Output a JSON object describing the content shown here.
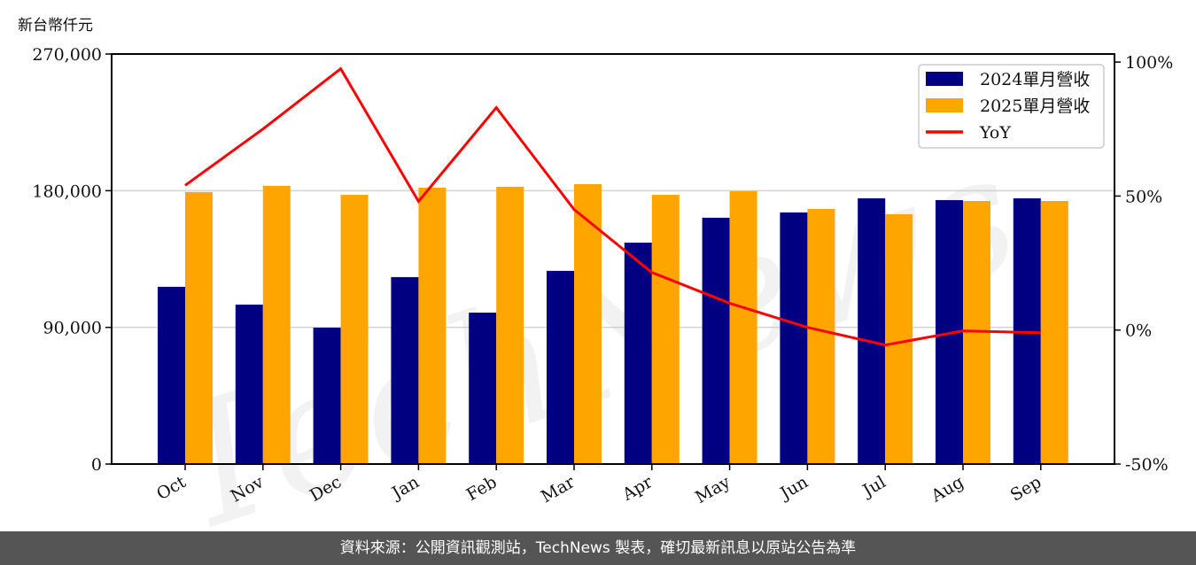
{
  "chart_data": {
    "type": "bar",
    "ylabel": "新台幣仟元",
    "categories": [
      "Oct",
      "Nov",
      "Dec",
      "Jan",
      "Feb",
      "Mar",
      "Apr",
      "May",
      "Jun",
      "Jul",
      "Aug",
      "Sep"
    ],
    "series": [
      {
        "name": "2024單月營收",
        "type": "bar",
        "axis": "left",
        "color": "#000080",
        "values": [
          116700,
          105000,
          89800,
          123100,
          99700,
          127200,
          145800,
          162200,
          165700,
          175000,
          173800,
          175000
        ]
      },
      {
        "name": "2025單月營收",
        "type": "bar",
        "axis": "left",
        "color": "#FFA500",
        "values": [
          179100,
          183200,
          177300,
          182000,
          182600,
          184300,
          177300,
          179700,
          168000,
          164500,
          173200,
          173200
        ]
      },
      {
        "name": "YoY",
        "type": "line",
        "axis": "right",
        "color": "#FF0000",
        "values": [
          54,
          75,
          97.5,
          48,
          83,
          45,
          21.5,
          10,
          1,
          -5.6,
          -0.3,
          -1
        ]
      }
    ],
    "ylim": [
      0,
      270000
    ],
    "y2lim": [
      -50,
      103
    ],
    "yticks": [
      0,
      90000,
      180000,
      270000
    ],
    "yticklabels": [
      "0",
      "90,000",
      "180,000",
      "270,000"
    ],
    "y2ticks": [
      -50,
      0,
      50,
      100
    ],
    "y2ticklabels": [
      "-50%",
      "0%",
      "50%",
      "100%"
    ],
    "grid": true,
    "legend": "top-right"
  },
  "watermark": "TechNews",
  "footer": "資料來源：公開資訊觀測站，TechNews 製表，確切最新訊息以原站公告為準"
}
